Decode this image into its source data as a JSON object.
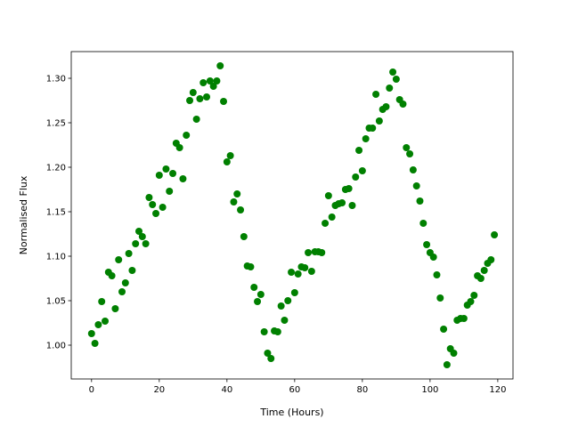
{
  "chart_data": {
    "type": "scatter",
    "xlabel": "Time (Hours)",
    "ylabel": "Normalised Flux",
    "color": "#008000",
    "x": [
      0,
      1,
      2,
      3,
      4,
      5,
      6,
      7,
      8,
      9,
      10,
      11,
      12,
      13,
      14,
      15,
      16,
      17,
      18,
      19,
      20,
      21,
      22,
      23,
      24,
      25,
      26,
      27,
      28,
      29,
      30,
      31,
      32,
      33,
      34,
      35,
      36,
      37,
      38,
      39,
      40,
      41,
      42,
      43,
      44,
      45,
      46,
      47,
      48,
      49,
      50,
      51,
      52,
      53,
      54,
      55,
      56,
      57,
      58,
      59,
      60,
      61,
      62,
      63,
      64,
      65,
      66,
      67,
      68,
      69,
      70,
      71,
      72,
      73,
      74,
      75,
      76,
      77,
      78,
      79,
      80,
      81,
      82,
      83,
      84,
      85,
      86,
      87,
      88,
      89,
      90,
      91,
      92,
      93,
      94,
      95,
      96,
      97,
      98,
      99,
      100,
      101,
      102,
      103,
      104,
      105,
      106,
      107,
      108,
      109,
      110,
      111,
      112,
      113,
      114,
      115,
      116,
      117,
      118,
      119
    ],
    "values": [
      1.013,
      1.002,
      1.023,
      1.049,
      1.027,
      1.082,
      1.078,
      1.041,
      1.096,
      1.06,
      1.07,
      1.103,
      1.084,
      1.114,
      1.128,
      1.122,
      1.114,
      1.166,
      1.158,
      1.148,
      1.191,
      1.155,
      1.198,
      1.173,
      1.193,
      1.227,
      1.222,
      1.187,
      1.236,
      1.275,
      1.284,
      1.254,
      1.277,
      1.295,
      1.279,
      1.297,
      1.291,
      1.297,
      1.314,
      1.274,
      1.206,
      1.213,
      1.161,
      1.17,
      1.152,
      1.122,
      1.089,
      1.088,
      1.065,
      1.049,
      1.057,
      1.015,
      0.991,
      0.985,
      1.016,
      1.015,
      1.044,
      1.028,
      1.05,
      1.082,
      1.059,
      1.08,
      1.088,
      1.087,
      1.104,
      1.083,
      1.105,
      1.105,
      1.104,
      1.137,
      1.168,
      1.144,
      1.157,
      1.159,
      1.16,
      1.175,
      1.176,
      1.157,
      1.189,
      1.219,
      1.196,
      1.232,
      1.244,
      1.244,
      1.282,
      1.252,
      1.265,
      1.268,
      1.289,
      1.307,
      1.299,
      1.276,
      1.271,
      1.222,
      1.215,
      1.197,
      1.179,
      1.162,
      1.137,
      1.113,
      1.104,
      1.099,
      1.079,
      1.053,
      1.018,
      0.978,
      0.996,
      0.991,
      1.028,
      1.03,
      1.03,
      1.045,
      1.049,
      1.056,
      1.078,
      1.075,
      1.084,
      1.092,
      1.096,
      1.124
    ],
    "xlim": [
      -6,
      124.5
    ],
    "ylim": [
      0.962,
      1.33
    ],
    "xticks": [
      0,
      20,
      40,
      60,
      80,
      100,
      120
    ],
    "yticks": [
      {
        "value": 1.0,
        "label": "1.00"
      },
      {
        "value": 1.05,
        "label": "1.05"
      },
      {
        "value": 1.1,
        "label": "1.10"
      },
      {
        "value": 1.15,
        "label": "1.15"
      },
      {
        "value": 1.2,
        "label": "1.20"
      },
      {
        "value": 1.25,
        "label": "1.25"
      },
      {
        "value": 1.3,
        "label": "1.30"
      }
    ]
  }
}
